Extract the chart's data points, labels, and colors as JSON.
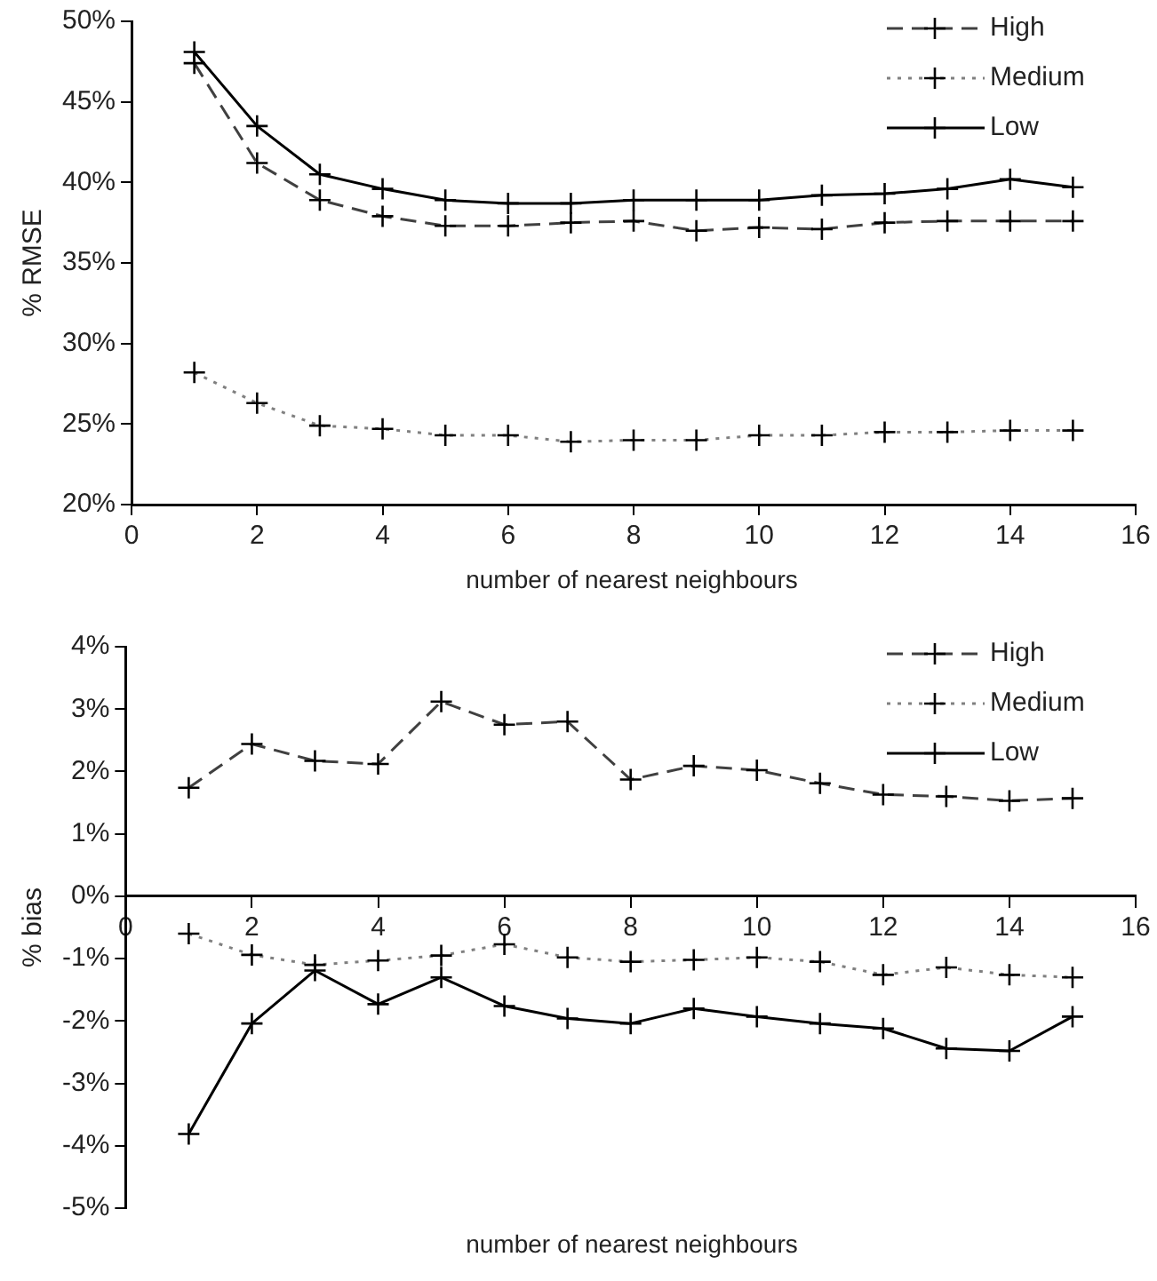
{
  "chart_data": [
    {
      "type": "line",
      "ylabel": "% RMSE",
      "xlabel": "number of nearest neighbours",
      "x": [
        1,
        2,
        3,
        4,
        5,
        6,
        7,
        8,
        9,
        10,
        11,
        12,
        13,
        14,
        15
      ],
      "xlim": [
        0,
        16
      ],
      "xticks": [
        0,
        2,
        4,
        6,
        8,
        10,
        12,
        14,
        16
      ],
      "ylim": [
        20,
        50
      ],
      "yticks": [
        {
          "value": 20,
          "label": "20%"
        },
        {
          "value": 25,
          "label": "25%"
        },
        {
          "value": 30,
          "label": "30%"
        },
        {
          "value": 35,
          "label": "35%"
        },
        {
          "value": 40,
          "label": "40%"
        },
        {
          "value": 45,
          "label": "45%"
        },
        {
          "value": 50,
          "label": "50%"
        }
      ],
      "grid": false,
      "legend": "top right",
      "marker": "cross",
      "series": [
        {
          "name": "High",
          "color": "#404040",
          "line_style": "dashed",
          "values": [
            47.4,
            41.2,
            38.9,
            37.9,
            37.3,
            37.3,
            37.5,
            37.6,
            37.0,
            37.2,
            37.1,
            37.5,
            37.6,
            37.6,
            37.6
          ]
        },
        {
          "name": "Medium",
          "color": "#808080",
          "line_style": "dotted",
          "values": [
            28.2,
            26.3,
            24.9,
            24.7,
            24.3,
            24.3,
            23.9,
            24.0,
            24.0,
            24.3,
            24.3,
            24.5,
            24.5,
            24.6,
            24.6
          ]
        },
        {
          "name": "Low",
          "color": "#000000",
          "line_style": "solid",
          "values": [
            48.1,
            43.5,
            40.5,
            39.6,
            38.9,
            38.7,
            38.7,
            38.9,
            38.9,
            38.9,
            39.2,
            39.3,
            39.6,
            40.2,
            39.7
          ]
        }
      ]
    },
    {
      "type": "line",
      "ylabel": "% bias",
      "xlabel": "number of nearest neighbours",
      "x": [
        1,
        2,
        3,
        4,
        5,
        6,
        7,
        8,
        9,
        10,
        11,
        12,
        13,
        14,
        15
      ],
      "xlim": [
        0,
        16
      ],
      "xticks": [
        0,
        2,
        4,
        6,
        8,
        10,
        12,
        14,
        16
      ],
      "ylim": [
        -5,
        4
      ],
      "yticks": [
        {
          "value": -5,
          "label": "-5%"
        },
        {
          "value": -4,
          "label": "-4%"
        },
        {
          "value": -3,
          "label": "-3%"
        },
        {
          "value": -2,
          "label": "-2%"
        },
        {
          "value": -1,
          "label": "-1%"
        },
        {
          "value": 0,
          "label": "0%"
        },
        {
          "value": 1,
          "label": "1%"
        },
        {
          "value": 2,
          "label": "2%"
        },
        {
          "value": 3,
          "label": "3%"
        },
        {
          "value": 4,
          "label": "4%"
        }
      ],
      "grid": false,
      "legend": "top right",
      "marker": "cross",
      "series": [
        {
          "name": "High",
          "color": "#404040",
          "line_style": "dashed",
          "values": [
            1.74,
            2.44,
            2.17,
            2.12,
            3.12,
            2.75,
            2.8,
            1.87,
            2.09,
            2.02,
            1.81,
            1.63,
            1.6,
            1.53,
            1.57
          ]
        },
        {
          "name": "Medium",
          "color": "#808080",
          "line_style": "dotted",
          "values": [
            -0.6,
            -0.94,
            -1.1,
            -1.03,
            -0.95,
            -0.77,
            -0.98,
            -1.05,
            -1.02,
            -0.98,
            -1.05,
            -1.26,
            -1.14,
            -1.26,
            -1.3
          ]
        },
        {
          "name": "Low",
          "color": "#000000",
          "line_style": "solid",
          "values": [
            -3.81,
            -2.04,
            -1.19,
            -1.73,
            -1.3,
            -1.76,
            -1.96,
            -2.04,
            -1.8,
            -1.93,
            -2.04,
            -2.12,
            -2.44,
            -2.48,
            -1.93
          ]
        }
      ]
    }
  ]
}
